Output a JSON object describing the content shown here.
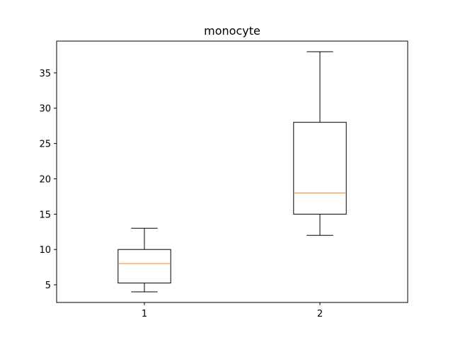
{
  "chart_data": {
    "type": "box",
    "title": "monocyte",
    "xlabel": "",
    "ylabel": "",
    "categories": [
      "1",
      "2"
    ],
    "boxes": [
      {
        "category": "1",
        "whisker_low": 4,
        "q1": 5.25,
        "median": 8,
        "q3": 10,
        "whisker_high": 13
      },
      {
        "category": "2",
        "whisker_low": 12,
        "q1": 15,
        "median": 18,
        "q3": 28,
        "whisker_high": 38
      }
    ],
    "ylim": [
      2.5,
      39.5
    ],
    "yticks": [
      5,
      10,
      15,
      20,
      25,
      30,
      35
    ],
    "grid": false,
    "colors": {
      "box": "#000000",
      "median": "#ff7f0e",
      "frame": "#000000"
    }
  }
}
